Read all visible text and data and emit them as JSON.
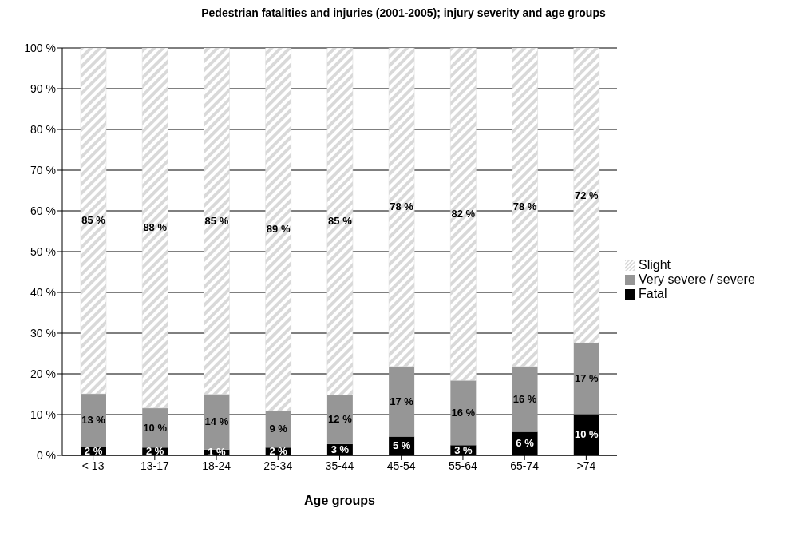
{
  "chart_data": {
    "type": "bar",
    "title": "Pedestrian fatalities and injuries (2001-2005); injury severity and age groups",
    "xlabel": "Age groups",
    "categories": [
      "< 13",
      "13-17",
      "18-24",
      "25-34",
      "35-44",
      "45-54",
      "55-64",
      "65-74",
      ">74"
    ],
    "stacked": true,
    "series": [
      {
        "name": "Fatal",
        "color": "#000000",
        "values": [
          2.1,
          1.9,
          1.4,
          1.9,
          2.8,
          4.6,
          2.5,
          5.8,
          10.1
        ],
        "value_labels": [
          "2 %",
          "2 %",
          "1 %",
          "2 %",
          "3 %",
          "5 %",
          "3 %",
          "6 %",
          "10 %"
        ]
      },
      {
        "name": "Very severe / severe",
        "color": "#969696",
        "values": [
          13,
          9.7,
          13.6,
          9,
          12,
          17.2,
          15.9,
          16,
          17.5
        ],
        "value_labels": [
          "13 %",
          "10 %",
          "14 %",
          "9 %",
          "12 %",
          "17 %",
          "16 %",
          "16 %",
          "17 %"
        ]
      },
      {
        "name": "Slight",
        "color": "#d9d9d9",
        "values": [
          84.9,
          88.4,
          85,
          89.1,
          85.2,
          78.2,
          81.6,
          78.2,
          72.4
        ],
        "value_labels": [
          "85 %",
          "88 %",
          "85 %",
          "89 %",
          "85 %",
          "78 %",
          "82 %",
          "78 %",
          "72 %"
        ]
      }
    ],
    "ylim": [
      0,
      100
    ],
    "yticks": [
      {
        "value": 0,
        "label": "0 %"
      },
      {
        "value": 10,
        "label": "10 %"
      },
      {
        "value": 20,
        "label": "20 %"
      },
      {
        "value": 30,
        "label": "30 %"
      },
      {
        "value": 40,
        "label": "40 %"
      },
      {
        "value": 50,
        "label": "50 %"
      },
      {
        "value": 60,
        "label": "60 %"
      },
      {
        "value": 70,
        "label": "70 %"
      },
      {
        "value": 80,
        "label": "80 %"
      },
      {
        "value": 90,
        "label": "90 %"
      },
      {
        "value": 100,
        "label": "100 %"
      }
    ],
    "grid": "y",
    "legend": "right"
  }
}
